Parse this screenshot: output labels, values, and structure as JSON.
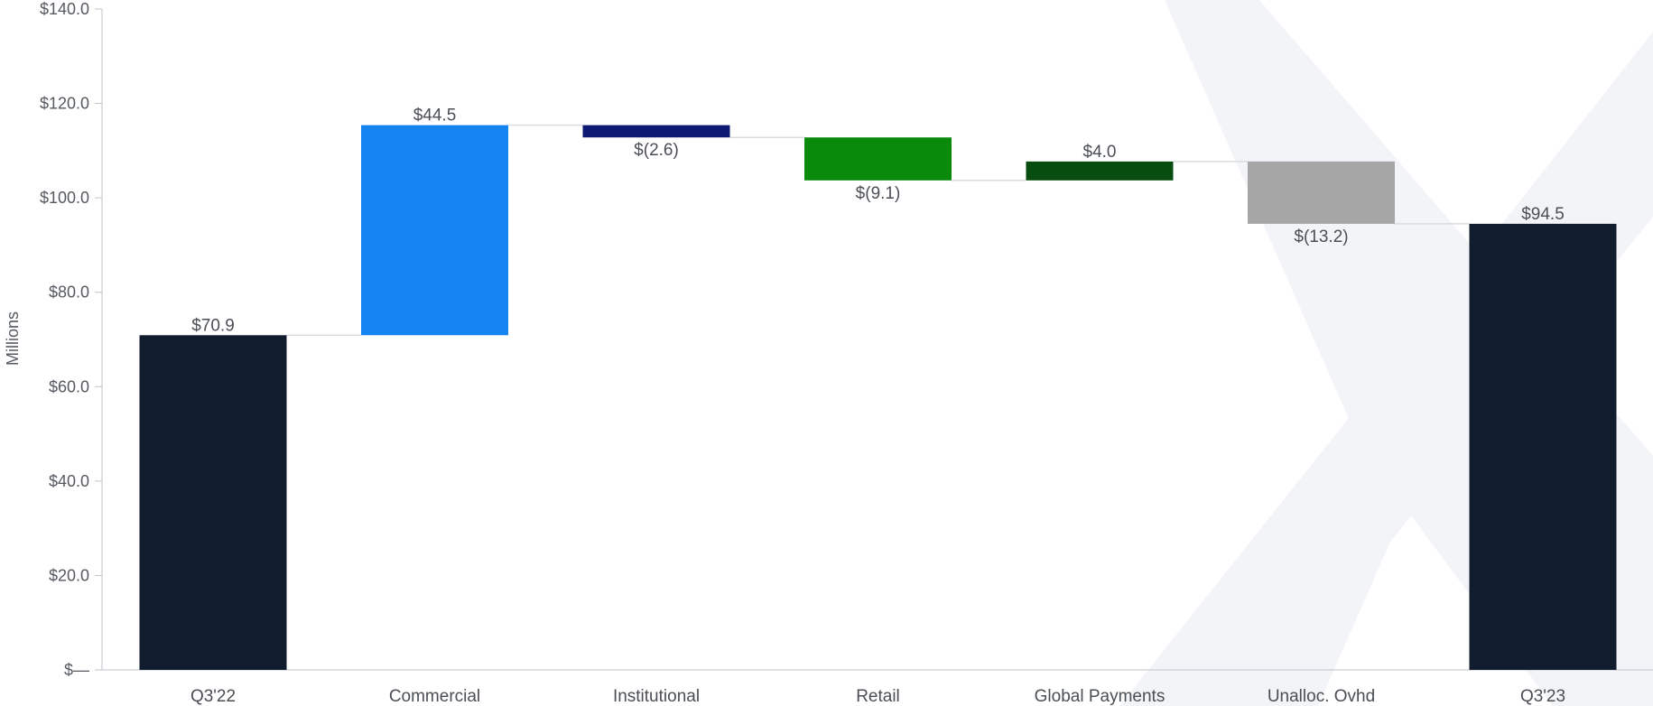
{
  "chart_data": {
    "type": "bar",
    "subtype": "waterfall",
    "title": "",
    "xlabel": "",
    "ylabel": "Millions",
    "ylim": [
      0,
      140
    ],
    "yticks": [
      {
        "value": 0,
        "label": "$—"
      },
      {
        "value": 20,
        "label": "$20.0"
      },
      {
        "value": 40,
        "label": "$40.0"
      },
      {
        "value": 60,
        "label": "$60.0"
      },
      {
        "value": 80,
        "label": "$80.0"
      },
      {
        "value": 100,
        "label": "$100.0"
      },
      {
        "value": 120,
        "label": "$120.0"
      },
      {
        "value": 140,
        "label": "$140.0"
      }
    ],
    "grid": false,
    "legend": "none",
    "categories": [
      "Q3'22",
      "Commercial",
      "Institutional",
      "Retail",
      "Global Payments",
      "Unalloc. Ovhd",
      "Q3'23"
    ],
    "values": [
      70.9,
      44.5,
      -2.6,
      -9.1,
      4.0,
      -13.2,
      94.5
    ],
    "kinds": [
      "total",
      "delta",
      "delta",
      "delta",
      "delta",
      "delta",
      "total"
    ],
    "value_labels": [
      "$70.9",
      "$44.5",
      "$(2.6)",
      "$(9.1)",
      "$4.0",
      "$(13.2)",
      "$94.5"
    ],
    "colors": [
      "#111d2f",
      "#1384f2",
      "#0d1a73",
      "#0a8a0a",
      "#074d10",
      "#a6a6a6",
      "#111d2f"
    ],
    "connector_color": "#d9dce0",
    "axis_color": "#bfc3c8",
    "watermark_color": "#f2f4f7"
  }
}
